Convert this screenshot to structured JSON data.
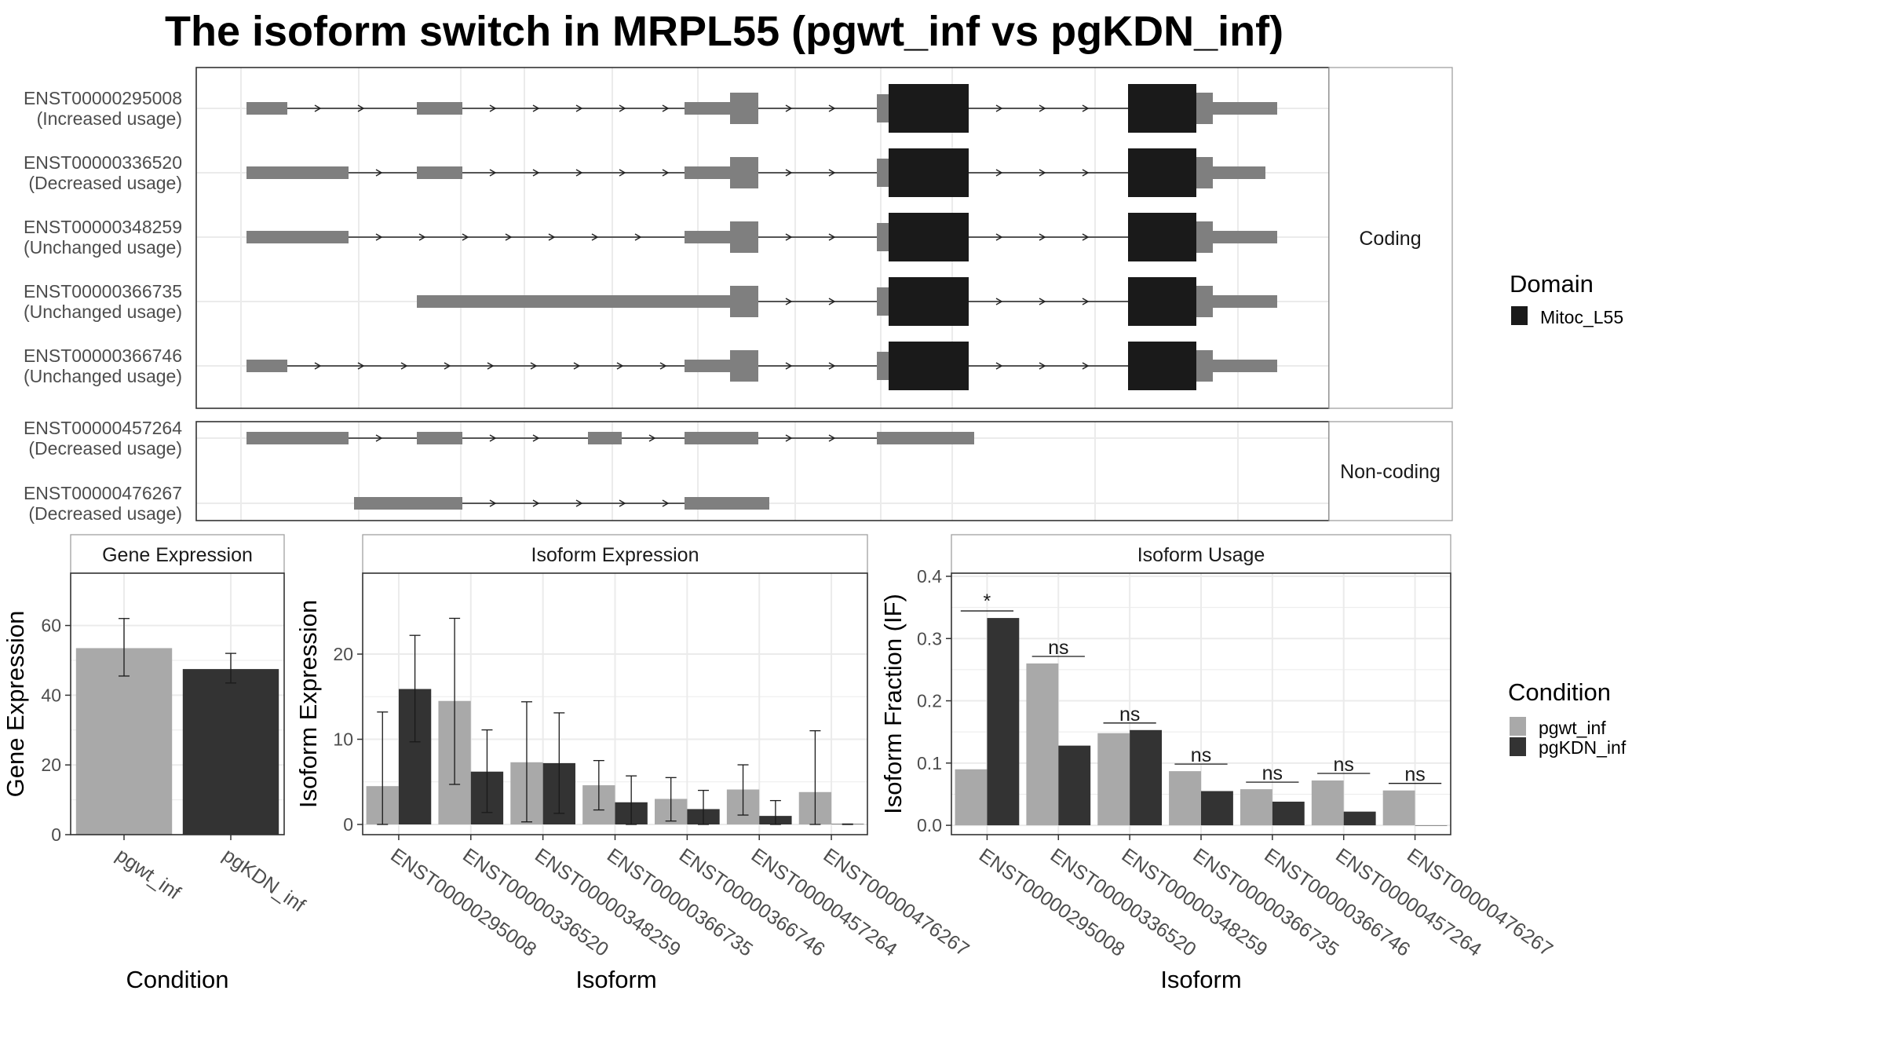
{
  "title": "The isoform switch in MRPL55 (pgwt_inf vs pgKDN_inf)",
  "colors": {
    "utr": "#7f7f7f",
    "domain": "#1a1a1a",
    "pgwt_inf": "#a9a9a9",
    "pgKDN_inf": "#333333",
    "grid": "#ebebeb",
    "panel_border": "#333333",
    "strip_bg": "#ffffff",
    "strip_border": "#a0a0a0"
  },
  "transcripts": {
    "coding_strip": "Coding",
    "noncoding_strip": "Non-coding",
    "coding": [
      {
        "id": "ENST00000295008",
        "usage": "(Increased usage)"
      },
      {
        "id": "ENST00000336520",
        "usage": "(Decreased usage)"
      },
      {
        "id": "ENST00000348259",
        "usage": "(Unchanged usage)"
      },
      {
        "id": "ENST00000366735",
        "usage": "(Unchanged usage)"
      },
      {
        "id": "ENST00000366746",
        "usage": "(Unchanged usage)"
      }
    ],
    "noncoding": [
      {
        "id": "ENST00000457264",
        "usage": "(Decreased usage)"
      },
      {
        "id": "ENST00000476267",
        "usage": "(Decreased usage)"
      }
    ]
  },
  "domain_legend": {
    "title": "Domain",
    "items": [
      "Mitoc_L55"
    ]
  },
  "condition_legend": {
    "title": "Condition",
    "items": [
      "pgwt_inf",
      "pgKDN_inf"
    ]
  },
  "chart_data": [
    {
      "type": "bar",
      "strip": "Gene Expression",
      "xlabel": "Condition",
      "ylabel": "Gene Expression",
      "categories": [
        "pgwt_inf",
        "pgKDN_inf"
      ],
      "values": [
        53.5,
        47.5
      ],
      "error_low": [
        45.5,
        43.5
      ],
      "error_high": [
        62,
        52
      ],
      "ylim": [
        0,
        75
      ],
      "yticks": [
        0,
        20,
        40,
        60
      ]
    },
    {
      "type": "bar",
      "strip": "Isoform Expression",
      "xlabel": "Isoform",
      "ylabel": "Isoform Expression",
      "categories": [
        "ENST00000295008",
        "ENST00000336520",
        "ENST00000348259",
        "ENST00000366735",
        "ENST00000366746",
        "ENST00000457264",
        "ENST00000476267"
      ],
      "series": [
        {
          "name": "pgwt_inf",
          "values": [
            4.5,
            14.5,
            7.3,
            4.6,
            3.0,
            4.1,
            3.8
          ],
          "error_low": [
            0,
            4.7,
            0.3,
            1.7,
            0.4,
            1.1,
            0
          ],
          "error_high": [
            13.2,
            24.2,
            14.4,
            7.5,
            5.5,
            7.0,
            11.0
          ]
        },
        {
          "name": "pgKDN_inf",
          "values": [
            15.9,
            6.2,
            7.2,
            2.6,
            1.8,
            1.0,
            0.05
          ],
          "error_low": [
            9.7,
            1.4,
            1.3,
            0,
            0,
            0,
            0
          ],
          "error_high": [
            22.2,
            11.1,
            13.1,
            5.7,
            4.0,
            2.8,
            0.05
          ]
        }
      ],
      "ylim": [
        -1.2,
        29.5
      ],
      "yticks": [
        0,
        10,
        20
      ]
    },
    {
      "type": "bar",
      "strip": "Isoform Usage",
      "xlabel": "Isoform",
      "ylabel": "Isoform Fraction (IF)",
      "categories": [
        "ENST00000295008",
        "ENST00000336520",
        "ENST00000348259",
        "ENST00000366735",
        "ENST00000366746",
        "ENST00000457264",
        "ENST00000476267"
      ],
      "series": [
        {
          "name": "pgwt_inf",
          "values": [
            0.09,
            0.26,
            0.148,
            0.087,
            0.058,
            0.072,
            0.056
          ]
        },
        {
          "name": "pgKDN_inf",
          "values": [
            0.333,
            0.128,
            0.153,
            0.055,
            0.038,
            0.022,
            0.0
          ]
        }
      ],
      "significance": [
        "*",
        "ns",
        "ns",
        "ns",
        "ns",
        "ns",
        "ns"
      ],
      "ylim": [
        -0.015,
        0.405
      ],
      "yticks": [
        0.0,
        0.1,
        0.2,
        0.3,
        0.4
      ],
      "ytick_labels": [
        "0.0",
        "0.1",
        "0.2",
        "0.3",
        "0.4"
      ]
    }
  ]
}
